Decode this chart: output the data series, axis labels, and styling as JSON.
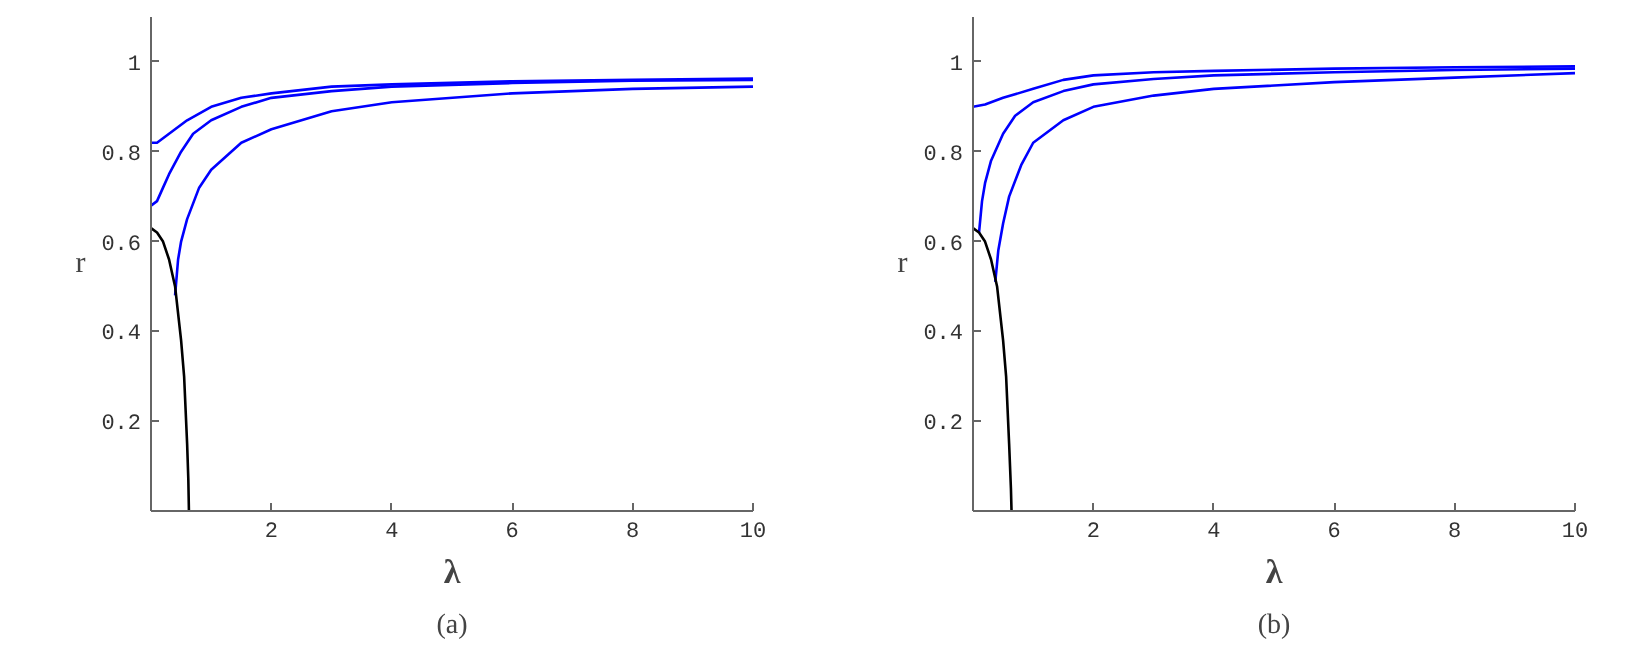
{
  "chart_data": [
    {
      "type": "line",
      "title": "(a)",
      "xlabel": "λ",
      "ylabel": "r",
      "xlim": [
        0,
        10
      ],
      "ylim": [
        0,
        1.1
      ],
      "xticks": [
        2,
        4,
        6,
        8,
        10
      ],
      "yticks": [
        0.2,
        0.4,
        0.6,
        0.8,
        1
      ],
      "grid": false,
      "series": [
        {
          "color": "#0000ff",
          "x": [
            0,
            0.1,
            0.2,
            0.4,
            0.6,
            1,
            1.5,
            2,
            3,
            4,
            6,
            8,
            10
          ],
          "values": [
            0.82,
            0.82,
            0.83,
            0.85,
            0.87,
            0.9,
            0.92,
            0.93,
            0.945,
            0.95,
            0.957,
            0.96,
            0.963
          ]
        },
        {
          "color": "#0000ff",
          "x": [
            0,
            0.1,
            0.2,
            0.3,
            0.5,
            0.7,
            1,
            1.5,
            2,
            3,
            4,
            6,
            8,
            10
          ],
          "values": [
            0.68,
            0.69,
            0.72,
            0.75,
            0.8,
            0.84,
            0.87,
            0.9,
            0.92,
            0.935,
            0.945,
            0.953,
            0.958,
            0.96
          ]
        },
        {
          "color": "#0000ff",
          "x": [
            0.4,
            0.45,
            0.5,
            0.6,
            0.8,
            1,
            1.5,
            2,
            3,
            4,
            6,
            8,
            10
          ],
          "values": [
            0.48,
            0.56,
            0.6,
            0.65,
            0.72,
            0.76,
            0.82,
            0.85,
            0.89,
            0.91,
            0.93,
            0.94,
            0.945
          ]
        },
        {
          "color": "#000000",
          "x": [
            0,
            0.1,
            0.2,
            0.3,
            0.4,
            0.5,
            0.55,
            0.6,
            0.62,
            0.63
          ],
          "values": [
            0.63,
            0.62,
            0.6,
            0.56,
            0.5,
            0.38,
            0.3,
            0.15,
            0.07,
            0
          ]
        }
      ]
    },
    {
      "type": "line",
      "title": "(b)",
      "xlabel": "λ",
      "ylabel": "r",
      "xlim": [
        0,
        10
      ],
      "ylim": [
        0,
        1.1
      ],
      "xticks": [
        2,
        4,
        6,
        8,
        10
      ],
      "yticks": [
        0.2,
        0.4,
        0.6,
        0.8,
        1
      ],
      "grid": false,
      "series": [
        {
          "color": "#0000ff",
          "x": [
            0,
            0.2,
            0.5,
            1,
            1.5,
            2,
            3,
            4,
            6,
            8,
            10
          ],
          "values": [
            0.9,
            0.905,
            0.92,
            0.94,
            0.96,
            0.97,
            0.977,
            0.98,
            0.985,
            0.988,
            0.99
          ]
        },
        {
          "color": "#0000ff",
          "x": [
            0.1,
            0.15,
            0.2,
            0.3,
            0.5,
            0.7,
            1,
            1.5,
            2,
            3,
            4,
            6,
            8,
            10
          ],
          "values": [
            0.62,
            0.69,
            0.73,
            0.78,
            0.84,
            0.88,
            0.91,
            0.935,
            0.95,
            0.962,
            0.97,
            0.977,
            0.982,
            0.985
          ]
        },
        {
          "color": "#0000ff",
          "x": [
            0.37,
            0.42,
            0.5,
            0.6,
            0.8,
            1,
            1.5,
            2,
            3,
            4,
            6,
            8,
            10
          ],
          "values": [
            0.51,
            0.58,
            0.64,
            0.7,
            0.77,
            0.82,
            0.87,
            0.9,
            0.925,
            0.94,
            0.955,
            0.965,
            0.975
          ]
        },
        {
          "color": "#000000",
          "x": [
            0,
            0.1,
            0.2,
            0.3,
            0.4,
            0.5,
            0.55,
            0.6,
            0.63,
            0.64
          ],
          "values": [
            0.63,
            0.62,
            0.6,
            0.56,
            0.5,
            0.38,
            0.3,
            0.15,
            0.05,
            0
          ]
        }
      ]
    }
  ]
}
